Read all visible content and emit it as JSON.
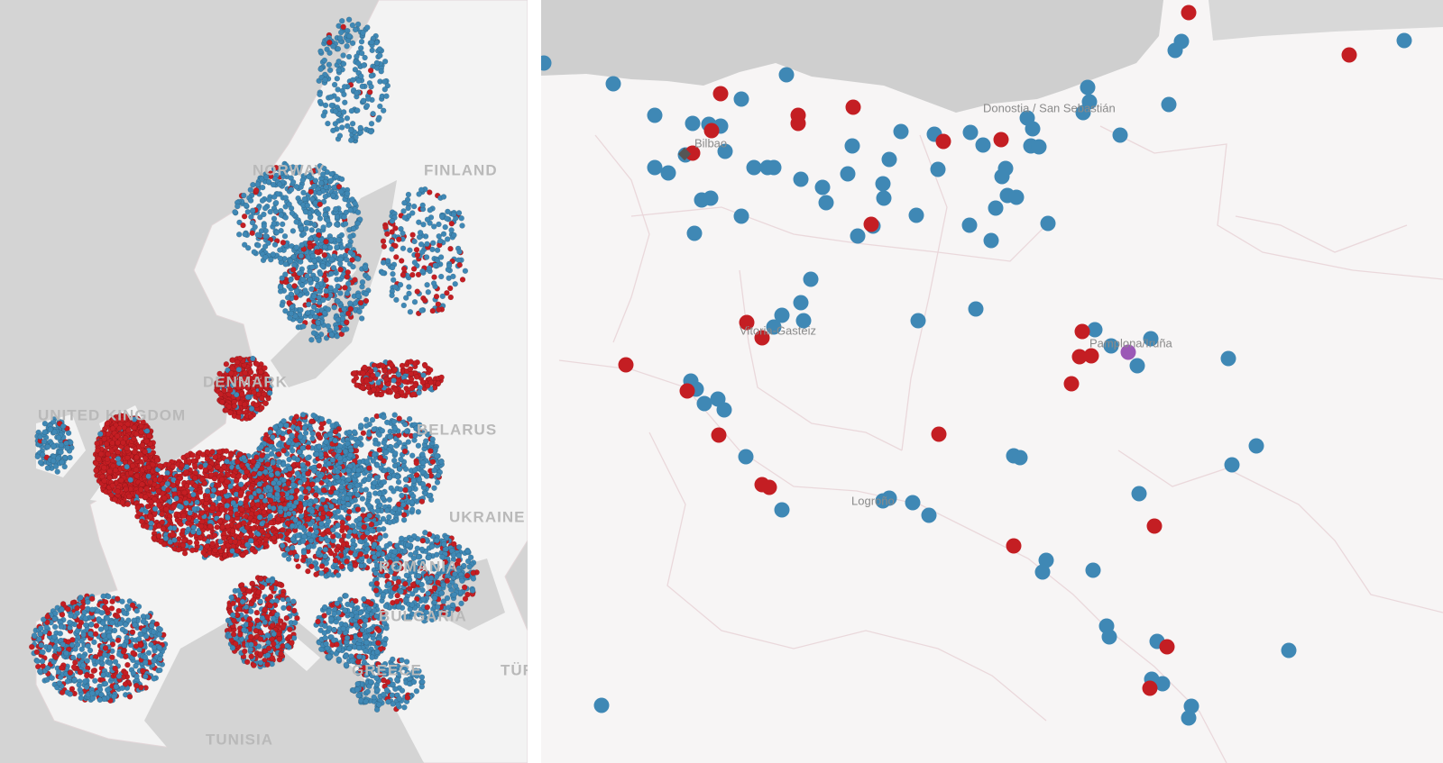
{
  "overview_map": {
    "labels": [
      "NORWAY",
      "FINLAND",
      "DENMARK",
      "UNITED KINGDOM",
      "BELARUS",
      "UKRAINE",
      "ROMANIA",
      "BULGARIA",
      "GREECE",
      "TÜRKIYE",
      "TUNISIA"
    ]
  },
  "detail_map": {
    "labels": [
      "Bilbao",
      "Donostia / San Sebastián",
      "Vitoria-Gasteiz",
      "Pamplona/Iruña",
      "Logroño"
    ]
  }
}
